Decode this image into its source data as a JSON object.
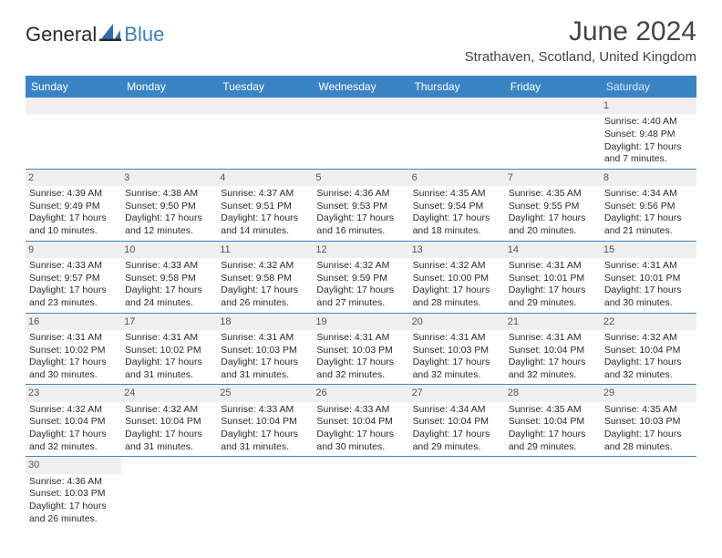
{
  "logo": {
    "general": "General",
    "blue": "Blue"
  },
  "title": "June 2024",
  "location": "Strathaven, Scotland, United Kingdom",
  "dayNames": [
    "Sunday",
    "Monday",
    "Tuesday",
    "Wednesday",
    "Thursday",
    "Friday",
    "Saturday"
  ],
  "colors": {
    "headerBg": "#3b84c4",
    "headerText": "#ffffff",
    "dayNumBg": "#efefef",
    "bodyText": "#2a2a2a",
    "rowBorder": "#3b84c4",
    "logoBlue": "#3b7fc4"
  },
  "typography": {
    "titleSize": 30,
    "locationSize": 15,
    "dayHeaderSize": 12,
    "cellFontSize": 10.5
  },
  "layout": {
    "columns": 7,
    "startDayIndex": 6
  },
  "days": [
    {
      "n": 1,
      "sr": "4:40 AM",
      "ss": "9:48 PM",
      "dl": "17 hours and 7 minutes."
    },
    {
      "n": 2,
      "sr": "4:39 AM",
      "ss": "9:49 PM",
      "dl": "17 hours and 10 minutes."
    },
    {
      "n": 3,
      "sr": "4:38 AM",
      "ss": "9:50 PM",
      "dl": "17 hours and 12 minutes."
    },
    {
      "n": 4,
      "sr": "4:37 AM",
      "ss": "9:51 PM",
      "dl": "17 hours and 14 minutes."
    },
    {
      "n": 5,
      "sr": "4:36 AM",
      "ss": "9:53 PM",
      "dl": "17 hours and 16 minutes."
    },
    {
      "n": 6,
      "sr": "4:35 AM",
      "ss": "9:54 PM",
      "dl": "17 hours and 18 minutes."
    },
    {
      "n": 7,
      "sr": "4:35 AM",
      "ss": "9:55 PM",
      "dl": "17 hours and 20 minutes."
    },
    {
      "n": 8,
      "sr": "4:34 AM",
      "ss": "9:56 PM",
      "dl": "17 hours and 21 minutes."
    },
    {
      "n": 9,
      "sr": "4:33 AM",
      "ss": "9:57 PM",
      "dl": "17 hours and 23 minutes."
    },
    {
      "n": 10,
      "sr": "4:33 AM",
      "ss": "9:58 PM",
      "dl": "17 hours and 24 minutes."
    },
    {
      "n": 11,
      "sr": "4:32 AM",
      "ss": "9:58 PM",
      "dl": "17 hours and 26 minutes."
    },
    {
      "n": 12,
      "sr": "4:32 AM",
      "ss": "9:59 PM",
      "dl": "17 hours and 27 minutes."
    },
    {
      "n": 13,
      "sr": "4:32 AM",
      "ss": "10:00 PM",
      "dl": "17 hours and 28 minutes."
    },
    {
      "n": 14,
      "sr": "4:31 AM",
      "ss": "10:01 PM",
      "dl": "17 hours and 29 minutes."
    },
    {
      "n": 15,
      "sr": "4:31 AM",
      "ss": "10:01 PM",
      "dl": "17 hours and 30 minutes."
    },
    {
      "n": 16,
      "sr": "4:31 AM",
      "ss": "10:02 PM",
      "dl": "17 hours and 30 minutes."
    },
    {
      "n": 17,
      "sr": "4:31 AM",
      "ss": "10:02 PM",
      "dl": "17 hours and 31 minutes."
    },
    {
      "n": 18,
      "sr": "4:31 AM",
      "ss": "10:03 PM",
      "dl": "17 hours and 31 minutes."
    },
    {
      "n": 19,
      "sr": "4:31 AM",
      "ss": "10:03 PM",
      "dl": "17 hours and 32 minutes."
    },
    {
      "n": 20,
      "sr": "4:31 AM",
      "ss": "10:03 PM",
      "dl": "17 hours and 32 minutes."
    },
    {
      "n": 21,
      "sr": "4:31 AM",
      "ss": "10:04 PM",
      "dl": "17 hours and 32 minutes."
    },
    {
      "n": 22,
      "sr": "4:32 AM",
      "ss": "10:04 PM",
      "dl": "17 hours and 32 minutes."
    },
    {
      "n": 23,
      "sr": "4:32 AM",
      "ss": "10:04 PM",
      "dl": "17 hours and 32 minutes."
    },
    {
      "n": 24,
      "sr": "4:32 AM",
      "ss": "10:04 PM",
      "dl": "17 hours and 31 minutes."
    },
    {
      "n": 25,
      "sr": "4:33 AM",
      "ss": "10:04 PM",
      "dl": "17 hours and 31 minutes."
    },
    {
      "n": 26,
      "sr": "4:33 AM",
      "ss": "10:04 PM",
      "dl": "17 hours and 30 minutes."
    },
    {
      "n": 27,
      "sr": "4:34 AM",
      "ss": "10:04 PM",
      "dl": "17 hours and 29 minutes."
    },
    {
      "n": 28,
      "sr": "4:35 AM",
      "ss": "10:04 PM",
      "dl": "17 hours and 29 minutes."
    },
    {
      "n": 29,
      "sr": "4:35 AM",
      "ss": "10:03 PM",
      "dl": "17 hours and 28 minutes."
    },
    {
      "n": 30,
      "sr": "4:36 AM",
      "ss": "10:03 PM",
      "dl": "17 hours and 26 minutes."
    }
  ],
  "labels": {
    "sunrise": "Sunrise: ",
    "sunset": "Sunset: ",
    "daylight": "Daylight: "
  }
}
